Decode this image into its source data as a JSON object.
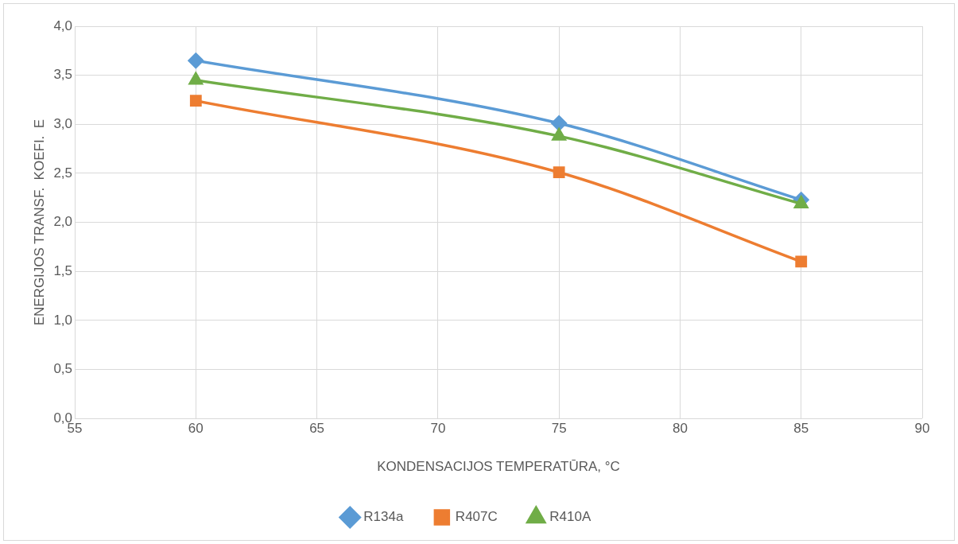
{
  "chart_data": {
    "type": "line",
    "xlabel": "KONDENSACIJOS TEMPERATŪRA, °C",
    "ylabel": "ENERGIJOS TRANSF.  KOEFI.  E",
    "x": [
      60,
      75,
      85
    ],
    "series": [
      {
        "name": "R134a",
        "color": "#5b9bd5",
        "marker": "diamond",
        "values": [
          3.65,
          3.01,
          2.23
        ]
      },
      {
        "name": "R407C",
        "color": "#ed7d31",
        "marker": "square",
        "values": [
          3.24,
          2.51,
          1.6
        ]
      },
      {
        "name": "R410A",
        "color": "#70ad47",
        "marker": "triangle",
        "values": [
          3.45,
          2.88,
          2.19
        ]
      }
    ],
    "xlim": [
      55,
      90
    ],
    "xticks": [
      55,
      60,
      65,
      70,
      75,
      80,
      85,
      90
    ],
    "ylim": [
      0,
      4
    ],
    "yticks": [
      {
        "value": 0,
        "label": "0,0"
      },
      {
        "value": 0.5,
        "label": "0,5"
      },
      {
        "value": 1,
        "label": "1,0"
      },
      {
        "value": 1.5,
        "label": "1,5"
      },
      {
        "value": 2,
        "label": "2,0"
      },
      {
        "value": 2.5,
        "label": "2,5"
      },
      {
        "value": 3,
        "label": "3,0"
      },
      {
        "value": 3.5,
        "label": "3,5"
      },
      {
        "value": 4,
        "label": "4,0"
      }
    ],
    "grid": true,
    "legend": "bottom",
    "line_style": "solid"
  }
}
